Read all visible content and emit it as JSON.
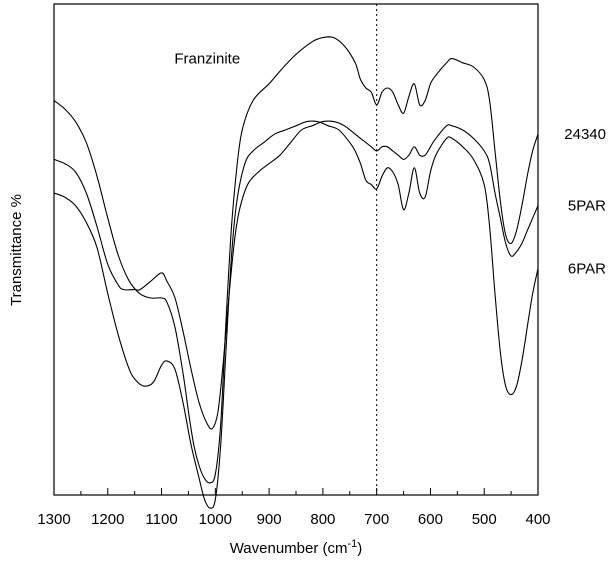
{
  "chart_data": {
    "type": "line",
    "title": "",
    "xlabel": "Wavenumber (cm",
    "xlabel_sup": "-1",
    "xlabel_close": ")",
    "ylabel": "Transmittance %",
    "xlim": [
      1300,
      400
    ],
    "x_reversed": true,
    "x_ticks": [
      1300,
      1200,
      1100,
      1000,
      900,
      800,
      700,
      600,
      500,
      400
    ],
    "y_ticks": [],
    "grid": false,
    "reference_line": {
      "x": 700,
      "style": "dotted"
    },
    "series": [
      {
        "name": "24340",
        "values": [
          [
            1300,
            92
          ],
          [
            1280,
            90
          ],
          [
            1260,
            87
          ],
          [
            1240,
            82
          ],
          [
            1220,
            74
          ],
          [
            1200,
            64
          ],
          [
            1180,
            55
          ],
          [
            1160,
            49
          ],
          [
            1140,
            46
          ],
          [
            1120,
            45
          ],
          [
            1100,
            45
          ],
          [
            1090,
            44
          ],
          [
            1075,
            38
          ],
          [
            1060,
            27
          ],
          [
            1050,
            18
          ],
          [
            1040,
            10
          ],
          [
            1030,
            5
          ],
          [
            1020,
            2
          ],
          [
            1010,
            1
          ],
          [
            1000,
            3
          ],
          [
            990,
            15
          ],
          [
            980,
            40
          ],
          [
            970,
            62
          ],
          [
            960,
            76
          ],
          [
            950,
            85
          ],
          [
            930,
            92
          ],
          [
            900,
            96
          ],
          [
            880,
            99
          ],
          [
            850,
            103
          ],
          [
            820,
            106
          ],
          [
            800,
            107
          ],
          [
            780,
            107
          ],
          [
            760,
            105
          ],
          [
            740,
            101
          ],
          [
            730,
            97
          ],
          [
            720,
            95
          ],
          [
            710,
            94
          ],
          [
            700,
            91
          ],
          [
            690,
            94
          ],
          [
            680,
            95
          ],
          [
            670,
            94
          ],
          [
            660,
            91
          ],
          [
            650,
            89
          ],
          [
            640,
            93
          ],
          [
            630,
            96
          ],
          [
            620,
            91
          ],
          [
            610,
            92
          ],
          [
            600,
            96
          ],
          [
            590,
            98
          ],
          [
            570,
            101
          ],
          [
            560,
            102
          ],
          [
            540,
            101
          ],
          [
            520,
            100
          ],
          [
            500,
            97
          ],
          [
            490,
            92
          ],
          [
            480,
            80
          ],
          [
            470,
            68
          ],
          [
            460,
            60
          ],
          [
            450,
            58
          ],
          [
            440,
            61
          ],
          [
            430,
            67
          ],
          [
            420,
            74
          ],
          [
            410,
            80
          ],
          [
            400,
            84
          ]
        ]
      },
      {
        "name": "5PAR",
        "values": [
          [
            1300,
            78
          ],
          [
            1280,
            77
          ],
          [
            1260,
            75
          ],
          [
            1240,
            70
          ],
          [
            1220,
            62
          ],
          [
            1200,
            53
          ],
          [
            1180,
            48
          ],
          [
            1170,
            47
          ],
          [
            1150,
            47
          ],
          [
            1140,
            47
          ],
          [
            1120,
            49
          ],
          [
            1100,
            51
          ],
          [
            1090,
            49
          ],
          [
            1075,
            45
          ],
          [
            1060,
            37
          ],
          [
            1045,
            28
          ],
          [
            1030,
            20
          ],
          [
            1015,
            15
          ],
          [
            1005,
            14
          ],
          [
            995,
            18
          ],
          [
            985,
            30
          ],
          [
            975,
            45
          ],
          [
            965,
            58
          ],
          [
            955,
            66
          ],
          [
            940,
            72
          ],
          [
            920,
            75
          ],
          [
            900,
            77
          ],
          [
            880,
            79
          ],
          [
            860,
            82
          ],
          [
            840,
            85
          ],
          [
            820,
            86
          ],
          [
            800,
            87
          ],
          [
            780,
            87
          ],
          [
            760,
            86
          ],
          [
            740,
            84
          ],
          [
            730,
            83
          ],
          [
            720,
            82
          ],
          [
            710,
            81
          ],
          [
            700,
            80
          ],
          [
            690,
            81
          ],
          [
            680,
            81
          ],
          [
            670,
            80
          ],
          [
            660,
            79
          ],
          [
            650,
            78
          ],
          [
            640,
            79
          ],
          [
            630,
            81
          ],
          [
            620,
            79
          ],
          [
            610,
            79
          ],
          [
            600,
            81
          ],
          [
            590,
            83
          ],
          [
            570,
            86
          ],
          [
            560,
            86
          ],
          [
            540,
            85
          ],
          [
            520,
            83
          ],
          [
            500,
            80
          ],
          [
            490,
            77
          ],
          [
            480,
            70
          ],
          [
            470,
            64
          ],
          [
            460,
            58
          ],
          [
            450,
            55
          ],
          [
            440,
            56
          ],
          [
            430,
            58
          ],
          [
            420,
            61
          ],
          [
            410,
            64
          ],
          [
            400,
            67
          ]
        ]
      },
      {
        "name": "6PAR",
        "values": [
          [
            1300,
            70
          ],
          [
            1280,
            69
          ],
          [
            1260,
            67
          ],
          [
            1240,
            63
          ],
          [
            1220,
            57
          ],
          [
            1200,
            46
          ],
          [
            1180,
            36
          ],
          [
            1160,
            28
          ],
          [
            1145,
            25
          ],
          [
            1130,
            24
          ],
          [
            1115,
            25
          ],
          [
            1100,
            29
          ],
          [
            1090,
            30
          ],
          [
            1075,
            28
          ],
          [
            1060,
            20
          ],
          [
            1045,
            10
          ],
          [
            1030,
            2
          ],
          [
            1020,
            -3
          ],
          [
            1010,
            -5
          ],
          [
            1000,
            -3
          ],
          [
            990,
            10
          ],
          [
            980,
            33
          ],
          [
            970,
            55
          ],
          [
            960,
            68
          ],
          [
            945,
            77
          ],
          [
            930,
            80
          ],
          [
            910,
            82
          ],
          [
            890,
            84
          ],
          [
            870,
            85
          ],
          [
            850,
            86
          ],
          [
            830,
            87
          ],
          [
            810,
            87
          ],
          [
            790,
            86
          ],
          [
            770,
            85
          ],
          [
            750,
            82
          ],
          [
            740,
            80
          ],
          [
            730,
            77
          ],
          [
            720,
            73
          ],
          [
            710,
            72
          ],
          [
            700,
            71
          ],
          [
            690,
            74
          ],
          [
            680,
            76
          ],
          [
            670,
            75
          ],
          [
            660,
            72
          ],
          [
            650,
            66
          ],
          [
            640,
            70
          ],
          [
            630,
            76
          ],
          [
            620,
            70
          ],
          [
            610,
            69
          ],
          [
            600,
            75
          ],
          [
            590,
            79
          ],
          [
            570,
            83
          ],
          [
            560,
            83
          ],
          [
            540,
            81
          ],
          [
            520,
            78
          ],
          [
            500,
            72
          ],
          [
            490,
            62
          ],
          [
            480,
            46
          ],
          [
            470,
            32
          ],
          [
            460,
            24
          ],
          [
            450,
            22
          ],
          [
            440,
            24
          ],
          [
            430,
            30
          ],
          [
            420,
            38
          ],
          [
            410,
            46
          ],
          [
            400,
            52
          ]
        ]
      }
    ],
    "annotations": [
      {
        "text": "Franzinite",
        "x": 1015,
        "y": 102
      }
    ]
  }
}
